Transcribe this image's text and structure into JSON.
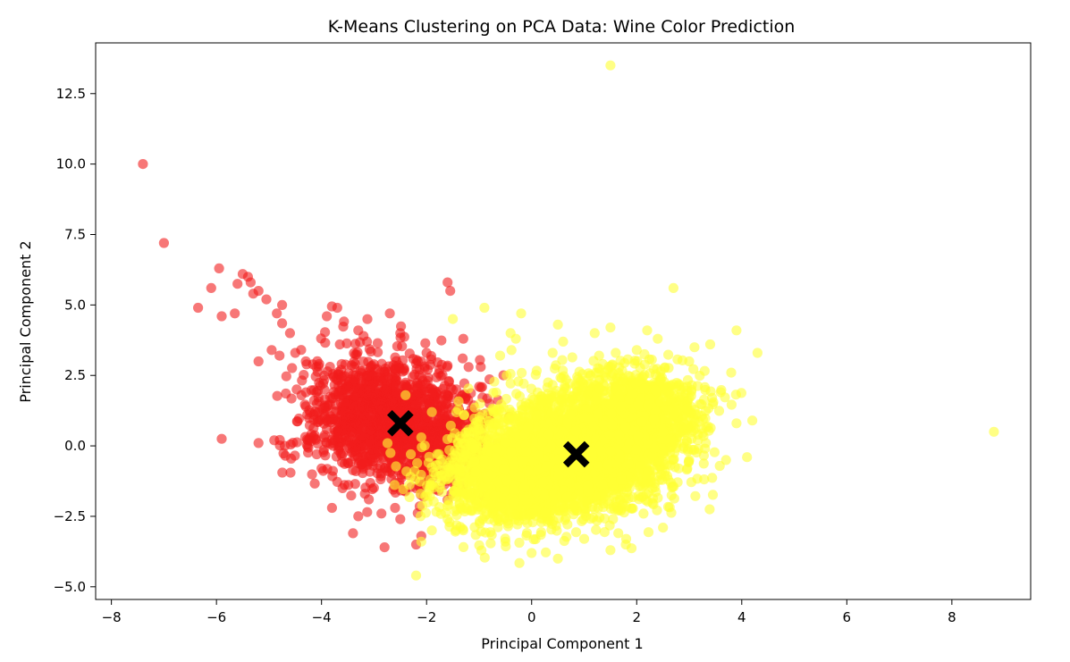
{
  "chart_data": {
    "type": "scatter",
    "title": "K-Means Clustering on PCA Data: Wine Color Prediction",
    "xlabel": "Principal Component 1",
    "ylabel": "Principal Component 2",
    "xlim": [
      -8.3,
      9.5
    ],
    "ylim": [
      -5.45,
      14.3
    ],
    "xticks": [
      -8,
      -6,
      -4,
      -2,
      0,
      2,
      4,
      6,
      8
    ],
    "yticks": [
      -5.0,
      -2.5,
      0.0,
      2.5,
      5.0,
      7.5,
      10.0,
      12.5
    ],
    "xtick_labels": [
      "−8",
      "−6",
      "−4",
      "−2",
      "0",
      "2",
      "4",
      "6",
      "8"
    ],
    "ytick_labels": [
      "−5.0",
      "−2.5",
      "0.0",
      "2.5",
      "5.0",
      "7.5",
      "10.0",
      "12.5"
    ],
    "grid": false,
    "series": [
      {
        "color": "#f21d1d",
        "opacity": 0.6,
        "center": [
          -2.5,
          0.8
        ],
        "points": [
          [
            -7.4,
            10.0
          ],
          [
            -7.0,
            7.2
          ],
          [
            -6.35,
            4.9
          ],
          [
            -6.1,
            5.6
          ],
          [
            -5.95,
            6.3
          ],
          [
            -5.9,
            4.6
          ],
          [
            -5.65,
            4.7
          ],
          [
            -5.5,
            6.1
          ],
          [
            -5.4,
            6.0
          ],
          [
            -5.35,
            5.8
          ],
          [
            -5.3,
            5.4
          ],
          [
            -5.2,
            5.5
          ],
          [
            -5.05,
            5.2
          ],
          [
            -5.6,
            5.75
          ],
          [
            -4.85,
            4.7
          ],
          [
            -4.75,
            5.0
          ],
          [
            -4.75,
            4.35
          ],
          [
            -4.6,
            4.0
          ],
          [
            -4.95,
            3.4
          ],
          [
            -4.8,
            3.2
          ],
          [
            -4.5,
            3.3
          ],
          [
            -4.3,
            3.0
          ],
          [
            -4.1,
            2.8
          ],
          [
            -3.9,
            4.6
          ],
          [
            -3.7,
            4.9
          ],
          [
            -3.3,
            4.1
          ],
          [
            -3.2,
            3.9
          ],
          [
            -2.7,
            4.7
          ],
          [
            -2.5,
            4.0
          ],
          [
            -1.6,
            5.8
          ],
          [
            -1.55,
            5.5
          ],
          [
            -1.3,
            3.8
          ],
          [
            -5.2,
            3.0
          ],
          [
            -5.2,
            0.1
          ],
          [
            -5.9,
            0.25
          ],
          [
            -4.9,
            0.2
          ],
          [
            -4.7,
            0.0
          ],
          [
            -3.8,
            -2.2
          ],
          [
            -3.4,
            -3.1
          ],
          [
            -3.3,
            -2.5
          ],
          [
            -2.8,
            -3.6
          ],
          [
            -2.5,
            -2.6
          ],
          [
            -2.2,
            -3.5
          ],
          [
            -2.1,
            -3.2
          ],
          [
            -4.3,
            1.4
          ],
          [
            -4.1,
            1.9
          ],
          [
            -3.9,
            0.6
          ],
          [
            -4.0,
            -0.8
          ],
          [
            -3.6,
            -1.5
          ],
          [
            -3.1,
            -1.9
          ],
          [
            -2.6,
            -2.2
          ],
          [
            -2.2,
            -1.5
          ],
          [
            -1.8,
            -1.0
          ],
          [
            -1.2,
            2.8
          ],
          [
            -1.0,
            2.1
          ],
          [
            -0.8,
            1.5
          ],
          [
            -1.1,
            0.6
          ],
          [
            -1.4,
            -0.5
          ],
          [
            -1.6,
            1.8
          ],
          [
            -2.0,
            3.3
          ]
        ],
        "clusters": [
          {
            "cx": -2.65,
            "cy": 0.9,
            "sx": 0.72,
            "sy": 1.08,
            "n": 1100,
            "seed": 11
          },
          {
            "cx": -3.25,
            "cy": 1.3,
            "sx": 0.6,
            "sy": 1.2,
            "n": 260,
            "seed": 12
          },
          {
            "cx": -1.75,
            "cy": 0.25,
            "sx": 0.55,
            "sy": 0.85,
            "n": 260,
            "seed": 13
          }
        ]
      },
      {
        "color": "#ffff33",
        "opacity": 0.6,
        "center": [
          0.85,
          -0.3
        ],
        "points": [
          [
            1.5,
            13.5
          ],
          [
            2.7,
            5.6
          ],
          [
            8.8,
            0.5
          ],
          [
            -2.2,
            -4.6
          ],
          [
            -1.9,
            -3.0
          ],
          [
            -1.6,
            -2.6
          ],
          [
            0.5,
            -4.0
          ],
          [
            1.5,
            -3.7
          ],
          [
            1.8,
            -3.3
          ],
          [
            2.5,
            -2.9
          ],
          [
            -0.2,
            4.7
          ],
          [
            -0.9,
            4.9
          ],
          [
            -0.3,
            3.8
          ],
          [
            0.5,
            4.3
          ],
          [
            0.6,
            3.7
          ],
          [
            1.2,
            4.0
          ],
          [
            1.5,
            4.2
          ],
          [
            2.2,
            4.1
          ],
          [
            2.4,
            3.8
          ],
          [
            3.1,
            3.5
          ],
          [
            3.4,
            3.6
          ],
          [
            3.9,
            4.1
          ],
          [
            4.3,
            3.3
          ],
          [
            3.8,
            2.6
          ],
          [
            3.6,
            1.9
          ],
          [
            3.9,
            0.8
          ],
          [
            4.2,
            0.9
          ],
          [
            4.1,
            -0.4
          ],
          [
            3.7,
            -0.5
          ],
          [
            3.3,
            -0.1
          ],
          [
            2.8,
            -0.8
          ],
          [
            2.6,
            -1.2
          ],
          [
            2.3,
            -1.5
          ],
          [
            1.7,
            -2.3
          ],
          [
            1.0,
            -3.3
          ],
          [
            0.0,
            -3.8
          ],
          [
            -0.5,
            -3.4
          ],
          [
            -1.3,
            -3.0
          ],
          [
            -2.1,
            -3.4
          ],
          [
            -1.9,
            -1.4
          ],
          [
            -2.3,
            -0.3
          ],
          [
            -2.1,
            0.3
          ],
          [
            -2.4,
            1.8
          ],
          [
            -1.9,
            1.2
          ],
          [
            -1.5,
            4.5
          ],
          [
            -0.4,
            4.0
          ],
          [
            0.4,
            3.3
          ],
          [
            1.6,
            3.3
          ],
          [
            2.0,
            3.4
          ],
          [
            3.0,
            3.0
          ],
          [
            -0.6,
            3.2
          ],
          [
            -1.4,
            0.1
          ],
          [
            -0.9,
            -0.6
          ]
        ],
        "clusters": [
          {
            "cx": 0.55,
            "cy": -0.55,
            "sx": 0.95,
            "sy": 1.0,
            "n": 1900,
            "seed": 21
          },
          {
            "cx": 1.4,
            "cy": 0.55,
            "sx": 0.75,
            "sy": 1.0,
            "n": 1300,
            "seed": 22
          },
          {
            "cx": -0.55,
            "cy": -1.3,
            "sx": 0.7,
            "sy": 0.9,
            "n": 700,
            "seed": 23
          },
          {
            "cx": 2.2,
            "cy": 1.2,
            "sx": 0.55,
            "sy": 0.75,
            "n": 500,
            "seed": 24
          }
        ]
      }
    ],
    "centroids": [
      [
        -2.5,
        0.8
      ],
      [
        0.85,
        -0.3
      ]
    ],
    "centroid_marker": "X",
    "centroid_color": "#000000"
  }
}
